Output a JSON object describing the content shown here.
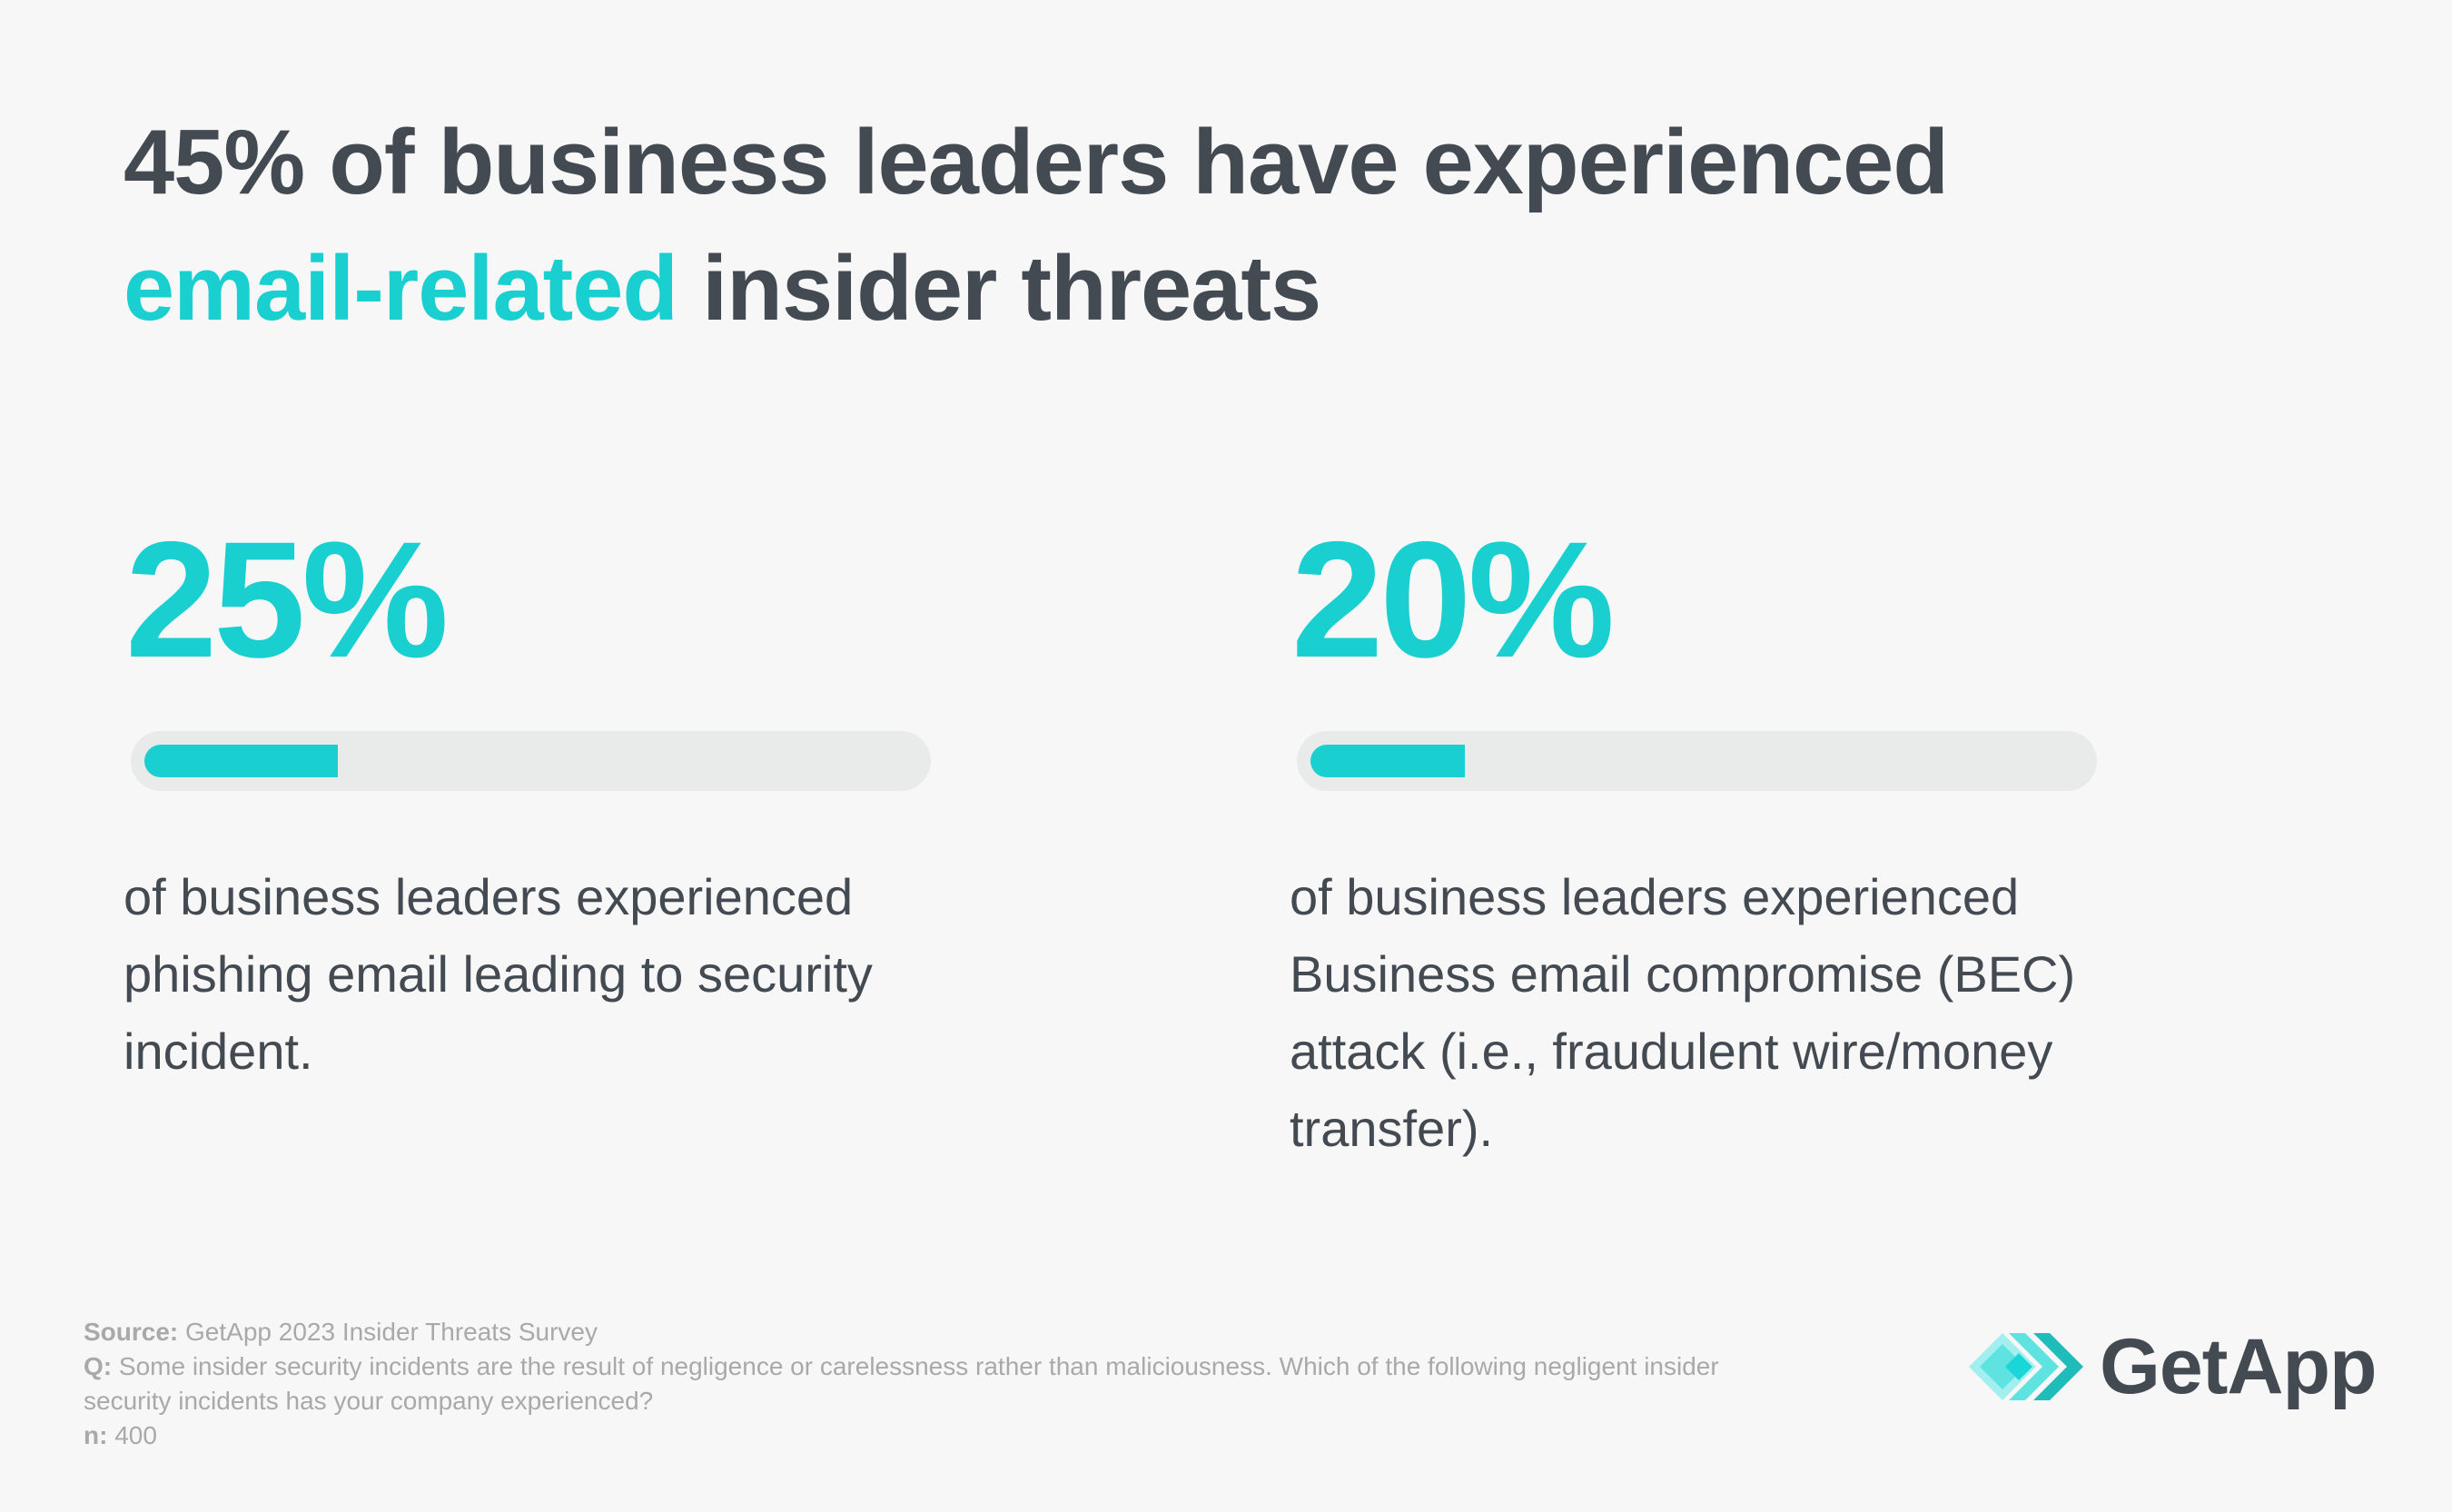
{
  "title": {
    "part1": "45% of business leaders have experienced",
    "accent": "email-related",
    "part2": " insider threats"
  },
  "stats": [
    {
      "value": "25%",
      "percent": 25,
      "description": "of business leaders experienced phishing email leading to security incident."
    },
    {
      "value": "20%",
      "percent": 20,
      "description": "of business leaders experienced Business email compromise (BEC) attack (i.e., fraudulent wire/money transfer)."
    }
  ],
  "footer": {
    "source_label": "Source:",
    "source_text": " GetApp 2023 Insider Threats Survey",
    "question_label": "Q:",
    "question_text": " Some insider security incidents are the result of negligence or carelessness rather than maliciousness. Which of the following negligent insider security incidents has your company experienced?",
    "n_label": "n:",
    "n_text": " 400"
  },
  "logo": {
    "text": "GetApp",
    "icon": "getapp-chevrons-icon"
  },
  "colors": {
    "background": "#f7f7f7",
    "text_dark": "#434a52",
    "accent_teal": "#19cfd0",
    "track": "#e9ebea",
    "footer_text": "#a9a9a9"
  },
  "chart_data": {
    "type": "bar",
    "title": "45% of business leaders have experienced email-related insider threats",
    "categories": [
      "Phishing email leading to security incident",
      "Business email compromise (BEC) attack (i.e., fraudulent wire/money transfer)"
    ],
    "values": [
      25,
      20
    ],
    "unit": "%",
    "xlabel": "",
    "ylabel": "% of business leaders",
    "ylim": [
      0,
      100
    ],
    "orientation": "horizontal progress bars",
    "source": "GetApp 2023 Insider Threats Survey",
    "n": 400
  }
}
